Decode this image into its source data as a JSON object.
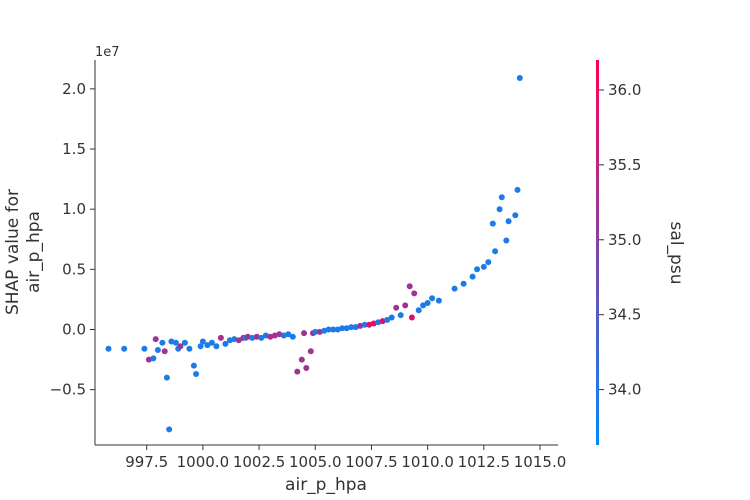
{
  "chart_data": {
    "type": "scatter",
    "xlabel": "air_p_hpa",
    "ylabel_lines": [
      "SHAP value for",
      "air_p_hpa"
    ],
    "y_offset_label": "1e7",
    "colorbar_label": "sal_psu",
    "xlim": [
      995.2,
      1015.8
    ],
    "ylim": [
      -9.6,
      22.4
    ],
    "x_ticks": [
      997.5,
      1000.0,
      1002.5,
      1005.0,
      1007.5,
      1010.0,
      1012.5,
      1015.0
    ],
    "x_tick_labels": [
      "997.5",
      "1000.0",
      "1002.5",
      "1005.0",
      "1007.5",
      "1010.0",
      "1012.5",
      "1015.0"
    ],
    "y_ticks": [
      -5,
      0,
      5,
      10,
      15,
      20
    ],
    "y_tick_labels": [
      "−0.5",
      "0.0",
      "0.5",
      "1.0",
      "1.5",
      "2.0"
    ],
    "colorbar_range": [
      33.63,
      36.2
    ],
    "colorbar_ticks": [
      34.0,
      34.5,
      35.0,
      35.5,
      36.0
    ],
    "colorbar_tick_labels": [
      "34.0",
      "34.5",
      "35.0",
      "35.5",
      "36.0"
    ],
    "colormap": [
      "#008afb",
      "#ff0052"
    ],
    "points_units": "x in hPa; y in units of 1e6 (SHAP value); c in psu",
    "points": [
      [
        995.8,
        -1.6,
        33.9
      ],
      [
        996.5,
        -1.6,
        33.9
      ],
      [
        997.4,
        -1.6,
        33.9
      ],
      [
        997.6,
        -2.5,
        35.2
      ],
      [
        997.8,
        -2.4,
        34.0
      ],
      [
        997.9,
        -0.8,
        35.2
      ],
      [
        998.0,
        -1.7,
        33.9
      ],
      [
        998.2,
        -1.1,
        33.9
      ],
      [
        998.3,
        -1.8,
        35.3
      ],
      [
        998.4,
        -4.0,
        33.9
      ],
      [
        998.5,
        -8.3,
        33.9
      ],
      [
        998.6,
        -1.0,
        33.9
      ],
      [
        998.8,
        -1.1,
        33.9
      ],
      [
        998.9,
        -1.6,
        33.9
      ],
      [
        999.0,
        -1.4,
        35.2
      ],
      [
        999.2,
        -1.1,
        33.9
      ],
      [
        999.4,
        -1.6,
        33.9
      ],
      [
        999.6,
        -3.0,
        33.9
      ],
      [
        999.7,
        -3.7,
        33.9
      ],
      [
        999.9,
        -1.4,
        33.9
      ],
      [
        1000.0,
        -1.0,
        33.9
      ],
      [
        1000.2,
        -1.3,
        33.9
      ],
      [
        1000.4,
        -1.1,
        33.9
      ],
      [
        1000.6,
        -1.4,
        33.9
      ],
      [
        1000.8,
        -0.7,
        35.3
      ],
      [
        1001.0,
        -1.2,
        33.9
      ],
      [
        1001.2,
        -0.9,
        33.9
      ],
      [
        1001.4,
        -0.8,
        33.9
      ],
      [
        1001.6,
        -0.9,
        35.2
      ],
      [
        1001.8,
        -0.7,
        35.3
      ],
      [
        1001.9,
        -0.7,
        33.9
      ],
      [
        1002.0,
        -0.6,
        35.3
      ],
      [
        1002.2,
        -0.7,
        33.9
      ],
      [
        1002.4,
        -0.6,
        35.3
      ],
      [
        1002.6,
        -0.7,
        33.9
      ],
      [
        1002.8,
        -0.5,
        33.9
      ],
      [
        1003.0,
        -0.6,
        35.3
      ],
      [
        1003.2,
        -0.5,
        35.3
      ],
      [
        1003.4,
        -0.4,
        35.2
      ],
      [
        1003.6,
        -0.5,
        33.9
      ],
      [
        1003.8,
        -0.4,
        33.9
      ],
      [
        1004.0,
        -0.6,
        33.9
      ],
      [
        1004.2,
        -3.5,
        35.2
      ],
      [
        1004.4,
        -2.5,
        35.2
      ],
      [
        1004.5,
        -0.3,
        35.3
      ],
      [
        1004.6,
        -3.2,
        35.2
      ],
      [
        1004.8,
        -1.8,
        35.2
      ],
      [
        1004.9,
        -0.3,
        35.3
      ],
      [
        1005.0,
        -0.2,
        33.9
      ],
      [
        1005.2,
        -0.2,
        35.3
      ],
      [
        1005.4,
        -0.1,
        33.9
      ],
      [
        1005.6,
        0.0,
        33.9
      ],
      [
        1005.8,
        0.0,
        33.9
      ],
      [
        1006.0,
        0.0,
        33.9
      ],
      [
        1006.2,
        0.1,
        33.9
      ],
      [
        1006.4,
        0.1,
        33.9
      ],
      [
        1006.6,
        0.2,
        33.9
      ],
      [
        1006.8,
        0.2,
        33.9
      ],
      [
        1007.0,
        0.3,
        35.3
      ],
      [
        1007.2,
        0.4,
        33.9
      ],
      [
        1007.4,
        0.4,
        35.9
      ],
      [
        1007.6,
        0.5,
        35.9
      ],
      [
        1007.8,
        0.6,
        33.9
      ],
      [
        1008.0,
        0.7,
        35.9
      ],
      [
        1008.2,
        0.8,
        33.9
      ],
      [
        1008.4,
        1.0,
        33.9
      ],
      [
        1008.6,
        1.8,
        35.2
      ],
      [
        1008.8,
        1.2,
        33.9
      ],
      [
        1009.0,
        2.0,
        35.2
      ],
      [
        1009.2,
        3.6,
        35.2
      ],
      [
        1009.3,
        1.0,
        35.9
      ],
      [
        1009.4,
        3.0,
        35.2
      ],
      [
        1009.6,
        1.6,
        33.9
      ],
      [
        1009.8,
        2.0,
        33.9
      ],
      [
        1010.0,
        2.2,
        33.9
      ],
      [
        1010.2,
        2.6,
        33.9
      ],
      [
        1010.5,
        2.4,
        33.9
      ],
      [
        1011.2,
        3.4,
        33.9
      ],
      [
        1011.6,
        3.8,
        33.9
      ],
      [
        1012.0,
        4.4,
        33.9
      ],
      [
        1012.2,
        5.0,
        33.9
      ],
      [
        1012.5,
        5.2,
        33.9
      ],
      [
        1012.7,
        5.6,
        33.9
      ],
      [
        1013.0,
        6.5,
        33.9
      ],
      [
        1012.9,
        8.8,
        33.9
      ],
      [
        1013.2,
        10.0,
        33.9
      ],
      [
        1013.3,
        11.0,
        33.9
      ],
      [
        1013.5,
        7.4,
        33.9
      ],
      [
        1013.6,
        9.0,
        33.9
      ],
      [
        1013.9,
        9.5,
        33.9
      ],
      [
        1014.0,
        11.6,
        33.9
      ],
      [
        1014.1,
        20.9,
        33.9
      ]
    ]
  }
}
